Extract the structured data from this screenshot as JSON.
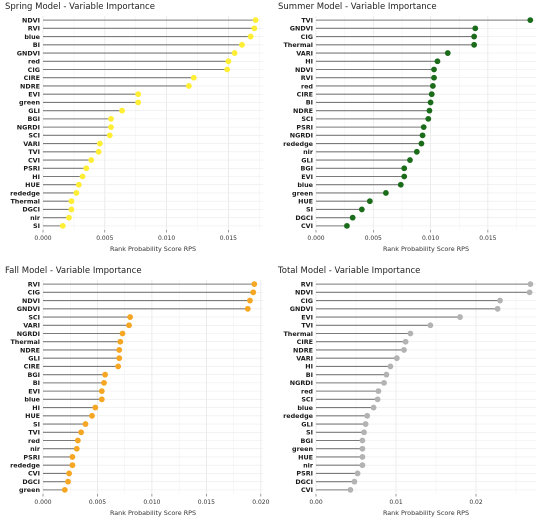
{
  "chart_data": [
    {
      "type": "lollipop",
      "title": "Spring Model - Variable Importance",
      "xlabel": "Rank Probability Score RPS",
      "xlim": [
        0,
        0.0178
      ],
      "xticks": [
        0.0,
        0.005,
        0.01,
        0.015
      ],
      "xtick_labels": [
        "0.000",
        "0.005",
        "0.010",
        "0.015"
      ],
      "color": "#ffee33",
      "categories": [
        "NDVI",
        "RVI",
        "blue",
        "BI",
        "GNDVI",
        "red",
        "CIG",
        "CIRE",
        "NDRE",
        "EVI",
        "green",
        "GLI",
        "BGI",
        "NGRDI",
        "SCI",
        "VARI",
        "TVI",
        "CVI",
        "PSRI",
        "HI",
        "HUE",
        "rededge",
        "Thermal",
        "DGCI",
        "nir",
        "SI"
      ],
      "values": [
        0.0172,
        0.0171,
        0.0168,
        0.0161,
        0.0155,
        0.015,
        0.0149,
        0.0122,
        0.0118,
        0.0077,
        0.0077,
        0.0064,
        0.0055,
        0.0055,
        0.0054,
        0.0046,
        0.0045,
        0.0039,
        0.0035,
        0.0032,
        0.0029,
        0.0027,
        0.0023,
        0.0023,
        0.0021,
        0.0016
      ]
    },
    {
      "type": "lollipop",
      "title": "Summer Model - Variable Importance",
      "xlabel": "Rank Probability Score RPS",
      "xlim": [
        0,
        0.0192
      ],
      "xticks": [
        0.0,
        0.005,
        0.01,
        0.015
      ],
      "xtick_labels": [
        "0.000",
        "0.005",
        "0.010",
        "0.015"
      ],
      "color": "#1a6b1a",
      "categories": [
        "TVI",
        "GNDVI",
        "CIG",
        "Thermal",
        "VARI",
        "HI",
        "NDVI",
        "RVI",
        "red",
        "CIRE",
        "BI",
        "NDRE",
        "SCI",
        "PSRI",
        "NGRDI",
        "rededge",
        "nir",
        "GLI",
        "BGI",
        "EVI",
        "blue",
        "green",
        "HUE",
        "SI",
        "DGCI",
        "CVI"
      ],
      "values": [
        0.0187,
        0.0139,
        0.0138,
        0.0138,
        0.0115,
        0.0106,
        0.0103,
        0.0103,
        0.0102,
        0.0101,
        0.01,
        0.0099,
        0.0098,
        0.0094,
        0.0093,
        0.0092,
        0.0088,
        0.0082,
        0.0077,
        0.0077,
        0.0074,
        0.0061,
        0.0047,
        0.004,
        0.0032,
        0.0027
      ]
    },
    {
      "type": "lollipop",
      "title": "Fall Model - Variable Importance",
      "xlabel": "Rank Probability Score RPS",
      "xlim": [
        0,
        0.0202
      ],
      "xticks": [
        0.0,
        0.005,
        0.01,
        0.015,
        0.02
      ],
      "xtick_labels": [
        "0.000",
        "0.005",
        "0.010",
        "0.015",
        "0.020"
      ],
      "color": "#f5a623",
      "categories": [
        "RVI",
        "CIG",
        "NDVI",
        "GNDVI",
        "SCI",
        "VARI",
        "NGRDI",
        "Thermal",
        "NDRE",
        "GLI",
        "CIRE",
        "BGI",
        "BI",
        "EVI",
        "blue",
        "HI",
        "HUE",
        "SI",
        "TVI",
        "red",
        "nir",
        "PSRI",
        "rededge",
        "CVI",
        "DGCI",
        "green"
      ],
      "values": [
        0.0194,
        0.0193,
        0.019,
        0.0188,
        0.008,
        0.0079,
        0.0073,
        0.0071,
        0.007,
        0.007,
        0.0069,
        0.0057,
        0.0056,
        0.0054,
        0.0054,
        0.0048,
        0.0045,
        0.0039,
        0.0035,
        0.0032,
        0.0031,
        0.0027,
        0.0027,
        0.0024,
        0.0023,
        0.002
      ]
    },
    {
      "type": "lollipop",
      "title": "Total Model - Variable Importance",
      "xlabel": "Rank Probability Score RPS",
      "xlim": [
        0,
        0.0275
      ],
      "xticks": [
        0.0,
        0.01,
        0.02
      ],
      "xtick_labels": [
        "0.00",
        "0.01",
        "0.02"
      ],
      "color": "#b3b3b3",
      "categories": [
        "RVI",
        "NDVI",
        "CIG",
        "GNDVI",
        "EVI",
        "TVI",
        "Thermal",
        "CIRE",
        "NDRE",
        "VARI",
        "HI",
        "BI",
        "NGRDI",
        "red",
        "SCI",
        "blue",
        "rededge",
        "GLI",
        "SI",
        "BGI",
        "green",
        "HUE",
        "nir",
        "PSRI",
        "DGCI",
        "CVI"
      ],
      "values": [
        0.0268,
        0.0267,
        0.023,
        0.0227,
        0.018,
        0.0143,
        0.0118,
        0.0112,
        0.011,
        0.0101,
        0.0093,
        0.0088,
        0.0085,
        0.0078,
        0.0077,
        0.0072,
        0.0064,
        0.0062,
        0.006,
        0.0058,
        0.0058,
        0.0058,
        0.0058,
        0.0052,
        0.0048,
        0.0043
      ]
    }
  ]
}
